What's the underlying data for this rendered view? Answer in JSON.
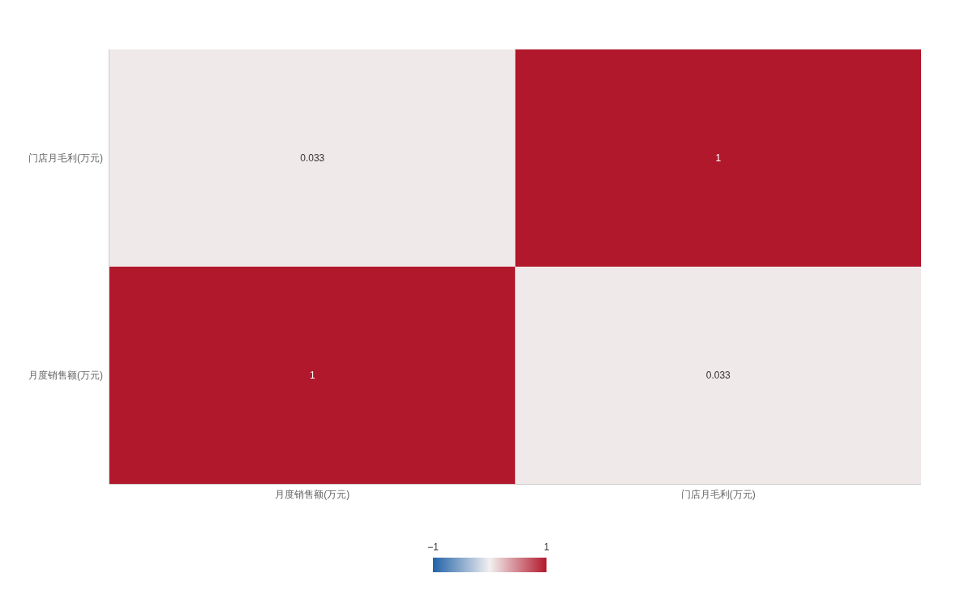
{
  "chart_data": {
    "type": "heatmap",
    "categories": [
      "月度销售额(万元)",
      "门店月毛利(万元)"
    ],
    "y_categories": [
      "门店月毛利(万元)",
      "月度销售额(万元)"
    ],
    "cells": [
      [
        0.033,
        1
      ],
      [
        1,
        0.033
      ]
    ],
    "data_labels": true,
    "clim": [
      -1,
      1
    ],
    "cticks": [
      {
        "value": -1,
        "label": "−1"
      },
      1
    ]
  }
}
